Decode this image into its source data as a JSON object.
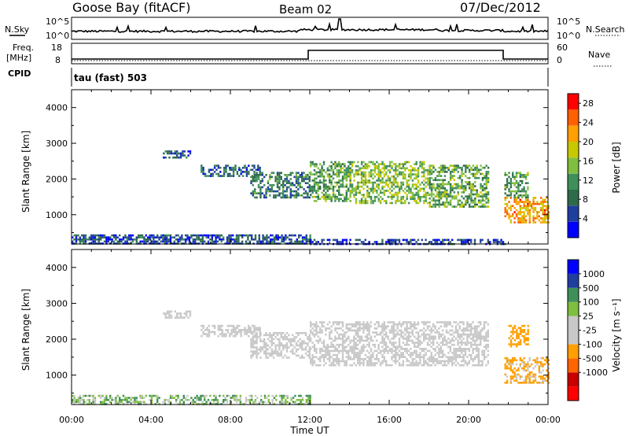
{
  "header": {
    "station": "Goose Bay (fitACF)",
    "beam": "Beam 02",
    "date": "07/Dec/2012"
  },
  "noise_panel": {
    "left_label": "N.Sky",
    "right_label": "N.Search",
    "left_ticks": [
      "10^5",
      "10^0"
    ],
    "right_ticks": [
      "10^5",
      "10^0"
    ]
  },
  "freq_panel": {
    "left_label_1": "Freq.",
    "left_label_2": "[MHz]",
    "right_label": "Nave",
    "cpid_label": "CPID",
    "left_ticks": [
      "18",
      "8"
    ],
    "right_ticks": [
      "60",
      "0"
    ],
    "program": "tau (fast) 503"
  },
  "colors": {
    "power_scale": [
      "#0000ff",
      "#1f3f9f",
      "#2e6b4a",
      "#3f8f5a",
      "#7fbf3f",
      "#c8c800",
      "#ff9f00",
      "#ff6000",
      "#ff0000"
    ],
    "velocity_scale": [
      "#ff0000",
      "#c80000",
      "#ff6400",
      "#ff9f00",
      "#c8c8c8",
      "#c8c8c8",
      "#7fbf3f",
      "#3f8f5a",
      "#1f3f9f",
      "#0000ff"
    ]
  },
  "chart_data": [
    {
      "type": "heatmap",
      "title": "",
      "xlabel": "",
      "ylabel": "Slant Range [km]",
      "xlim": [
        0,
        24
      ],
      "ylim": [
        180,
        4500
      ],
      "x_ticks": [
        "00:00",
        "04:00",
        "08:00",
        "12:00",
        "16:00",
        "20:00",
        "00:00"
      ],
      "y_ticks": [
        "1000",
        "2000",
        "3000",
        "4000"
      ],
      "colorbar": {
        "label": "Power [dB]",
        "ticks": [
          "4",
          "8",
          "12",
          "16",
          "20",
          "24",
          "28"
        ],
        "range": [
          0,
          30
        ]
      },
      "regions": [
        {
          "t0": 0.0,
          "t1": 12.0,
          "r0": 200,
          "r1": 450,
          "level": 6
        },
        {
          "t0": 12.0,
          "t1": 21.8,
          "r0": 200,
          "r1": 320,
          "level": 4
        },
        {
          "t0": 4.6,
          "t1": 6.0,
          "r0": 2600,
          "r1": 2800,
          "level": 6
        },
        {
          "t0": 6.5,
          "t1": 9.5,
          "r0": 2100,
          "r1": 2400,
          "level": 7
        },
        {
          "t0": 9.0,
          "t1": 12.0,
          "r0": 1500,
          "r1": 2200,
          "level": 9
        },
        {
          "t0": 12.0,
          "t1": 14.0,
          "r0": 1400,
          "r1": 2500,
          "level": 12
        },
        {
          "t0": 14.0,
          "t1": 18.0,
          "r0": 1300,
          "r1": 2500,
          "level": 15
        },
        {
          "t0": 18.0,
          "t1": 21.0,
          "r0": 1200,
          "r1": 2400,
          "level": 13
        },
        {
          "t0": 21.8,
          "t1": 24.0,
          "r0": 800,
          "r1": 1500,
          "level": 22
        },
        {
          "t0": 21.8,
          "t1": 23.0,
          "r0": 1500,
          "r1": 2200,
          "level": 12
        }
      ]
    },
    {
      "type": "heatmap",
      "title": "",
      "xlabel": "Time UT",
      "ylabel": "Slant Range [km]",
      "xlim": [
        0,
        24
      ],
      "ylim": [
        180,
        4500
      ],
      "x_ticks": [
        "00:00",
        "04:00",
        "08:00",
        "12:00",
        "16:00",
        "20:00",
        "00:00"
      ],
      "y_ticks": [
        "1000",
        "2000",
        "3000",
        "4000"
      ],
      "colorbar": {
        "label": "Velocity [m s⁻¹]",
        "ticks": [
          "1000",
          "500",
          "100",
          "25",
          "-25",
          "-100",
          "-500",
          "-1000"
        ]
      },
      "regions": [
        {
          "t0": 0.0,
          "t1": 12.0,
          "r0": 200,
          "r1": 450,
          "velocity": 60
        },
        {
          "t0": 4.6,
          "t1": 6.0,
          "r0": 2600,
          "r1": 2800,
          "velocity": 0
        },
        {
          "t0": 6.5,
          "t1": 9.5,
          "r0": 2100,
          "r1": 2400,
          "velocity": 0
        },
        {
          "t0": 9.0,
          "t1": 12.0,
          "r0": 1500,
          "r1": 2200,
          "velocity": 0
        },
        {
          "t0": 12.0,
          "t1": 21.0,
          "r0": 1300,
          "r1": 2500,
          "velocity": 0
        },
        {
          "t0": 21.8,
          "t1": 24.0,
          "r0": 800,
          "r1": 1500,
          "velocity": -150
        },
        {
          "t0": 22.0,
          "t1": 23.0,
          "r0": 1800,
          "r1": 2400,
          "velocity": -300
        }
      ]
    }
  ]
}
